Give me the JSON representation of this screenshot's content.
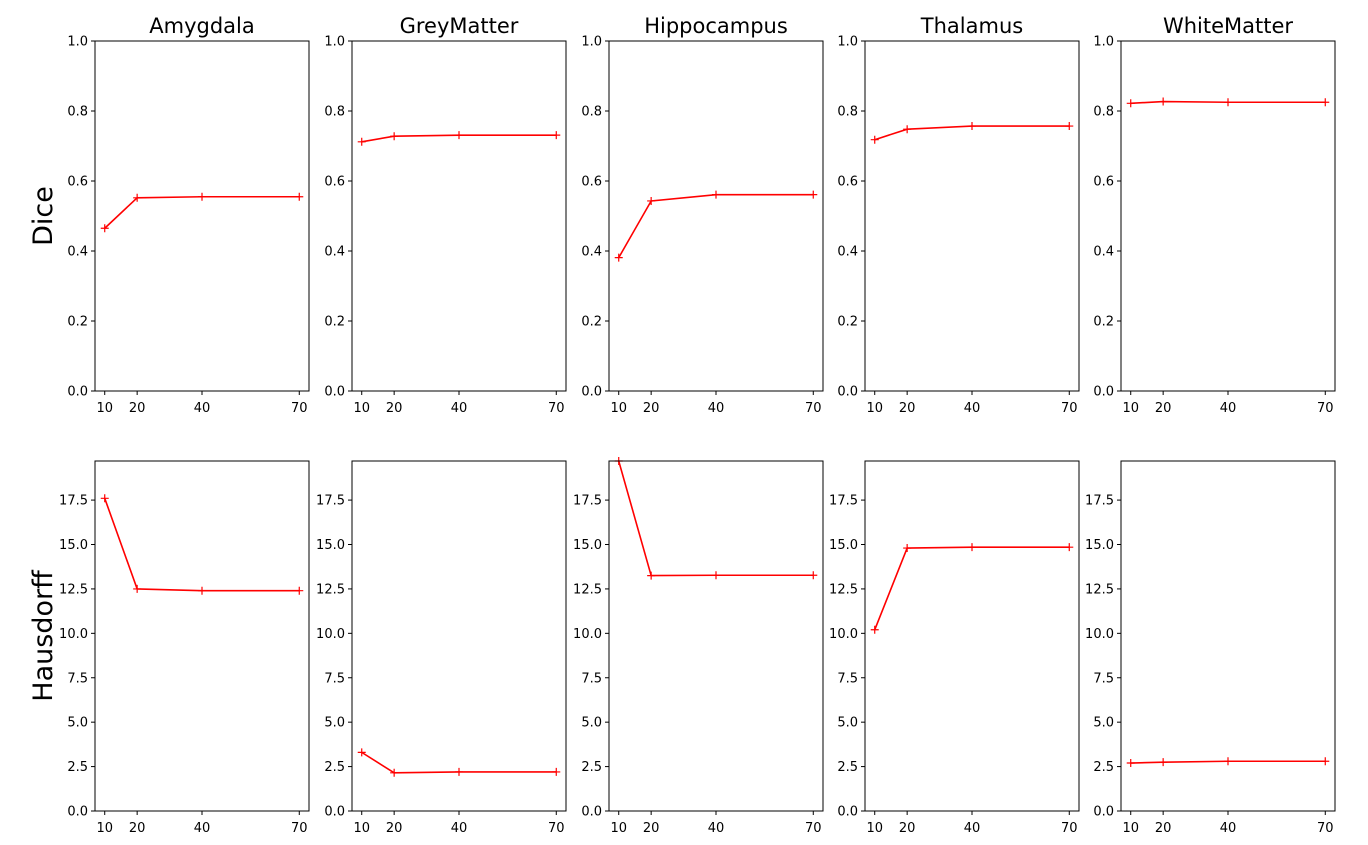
{
  "chart_data": [
    {
      "type": "line",
      "title": "Amygdala",
      "ylabel": "Dice",
      "x": [
        10,
        20,
        40,
        70
      ],
      "series": [
        {
          "values": [
            0.465,
            0.552,
            0.555,
            0.555
          ]
        }
      ],
      "xticks": [
        "10",
        "20",
        "40",
        "70"
      ],
      "yticks": [
        "0.0",
        "0.2",
        "0.4",
        "0.6",
        "0.8",
        "1.0"
      ],
      "ylim": [
        0,
        1
      ],
      "xlim": [
        7,
        73
      ],
      "color": "#ff0000",
      "marker": "plus",
      "grid": false
    },
    {
      "type": "line",
      "title": "GreyMatter",
      "ylabel": "",
      "x": [
        10,
        20,
        40,
        70
      ],
      "series": [
        {
          "values": [
            0.712,
            0.728,
            0.731,
            0.731
          ]
        }
      ],
      "xticks": [
        "10",
        "20",
        "40",
        "70"
      ],
      "yticks": [
        "0.0",
        "0.2",
        "0.4",
        "0.6",
        "0.8",
        "1.0"
      ],
      "ylim": [
        0,
        1
      ],
      "xlim": [
        7,
        73
      ],
      "color": "#ff0000",
      "marker": "plus",
      "grid": false
    },
    {
      "type": "line",
      "title": "Hippocampus",
      "ylabel": "",
      "x": [
        10,
        20,
        40,
        70
      ],
      "series": [
        {
          "values": [
            0.381,
            0.543,
            0.561,
            0.561
          ]
        }
      ],
      "xticks": [
        "10",
        "20",
        "40",
        "70"
      ],
      "yticks": [
        "0.0",
        "0.2",
        "0.4",
        "0.6",
        "0.8",
        "1.0"
      ],
      "ylim": [
        0,
        1
      ],
      "xlim": [
        7,
        73
      ],
      "color": "#ff0000",
      "marker": "plus",
      "grid": false
    },
    {
      "type": "line",
      "title": "Thalamus",
      "ylabel": "",
      "x": [
        10,
        20,
        40,
        70
      ],
      "series": [
        {
          "values": [
            0.718,
            0.748,
            0.757,
            0.757
          ]
        }
      ],
      "xticks": [
        "10",
        "20",
        "40",
        "70"
      ],
      "yticks": [
        "0.0",
        "0.2",
        "0.4",
        "0.6",
        "0.8",
        "1.0"
      ],
      "ylim": [
        0,
        1
      ],
      "xlim": [
        7,
        73
      ],
      "color": "#ff0000",
      "marker": "plus",
      "grid": false
    },
    {
      "type": "line",
      "title": "WhiteMatter",
      "ylabel": "",
      "x": [
        10,
        20,
        40,
        70
      ],
      "series": [
        {
          "values": [
            0.822,
            0.827,
            0.825,
            0.825
          ]
        }
      ],
      "xticks": [
        "10",
        "20",
        "40",
        "70"
      ],
      "yticks": [
        "0.0",
        "0.2",
        "0.4",
        "0.6",
        "0.8",
        "1.0"
      ],
      "ylim": [
        0,
        1
      ],
      "xlim": [
        7,
        73
      ],
      "color": "#ff0000",
      "marker": "plus",
      "grid": false
    },
    {
      "type": "line",
      "title": "",
      "ylabel": "Hausdorff",
      "x": [
        10,
        20,
        40,
        70
      ],
      "series": [
        {
          "values": [
            17.6,
            12.5,
            12.4,
            12.4
          ]
        }
      ],
      "xticks": [
        "10",
        "20",
        "40",
        "70"
      ],
      "yticks": [
        "0.0",
        "2.5",
        "5.0",
        "7.5",
        "10.0",
        "12.5",
        "15.0",
        "17.5"
      ],
      "ylim": [
        0,
        19.7
      ],
      "xlim": [
        7,
        73
      ],
      "color": "#ff0000",
      "marker": "plus",
      "grid": false
    },
    {
      "type": "line",
      "title": "",
      "ylabel": "",
      "x": [
        10,
        20,
        40,
        70
      ],
      "series": [
        {
          "values": [
            3.3,
            2.15,
            2.2,
            2.2
          ]
        }
      ],
      "xticks": [
        "10",
        "20",
        "40",
        "70"
      ],
      "yticks": [
        "0.0",
        "2.5",
        "5.0",
        "7.5",
        "10.0",
        "12.5",
        "15.0",
        "17.5"
      ],
      "ylim": [
        0,
        19.7
      ],
      "xlim": [
        7,
        73
      ],
      "color": "#ff0000",
      "marker": "plus",
      "grid": false
    },
    {
      "type": "line",
      "title": "",
      "ylabel": "",
      "x": [
        10,
        20,
        40,
        70
      ],
      "series": [
        {
          "values": [
            19.7,
            13.25,
            13.27,
            13.27
          ]
        }
      ],
      "xticks": [
        "10",
        "20",
        "40",
        "70"
      ],
      "yticks": [
        "0.0",
        "2.5",
        "5.0",
        "7.5",
        "10.0",
        "12.5",
        "15.0",
        "17.5"
      ],
      "ylim": [
        0,
        19.7
      ],
      "xlim": [
        7,
        73
      ],
      "color": "#ff0000",
      "marker": "plus",
      "grid": false
    },
    {
      "type": "line",
      "title": "",
      "ylabel": "",
      "x": [
        10,
        20,
        40,
        70
      ],
      "series": [
        {
          "values": [
            10.2,
            14.8,
            14.85,
            14.85
          ]
        }
      ],
      "xticks": [
        "10",
        "20",
        "40",
        "70"
      ],
      "yticks": [
        "0.0",
        "2.5",
        "5.0",
        "7.5",
        "10.0",
        "12.5",
        "15.0",
        "17.5"
      ],
      "ylim": [
        0,
        19.7
      ],
      "xlim": [
        7,
        73
      ],
      "color": "#ff0000",
      "marker": "plus",
      "grid": false
    },
    {
      "type": "line",
      "title": "",
      "ylabel": "",
      "x": [
        10,
        20,
        40,
        70
      ],
      "series": [
        {
          "values": [
            2.7,
            2.75,
            2.8,
            2.8
          ]
        }
      ],
      "xticks": [
        "10",
        "20",
        "40",
        "70"
      ],
      "yticks": [
        "0.0",
        "2.5",
        "5.0",
        "7.5",
        "10.0",
        "12.5",
        "15.0",
        "17.5"
      ],
      "ylim": [
        0,
        19.7
      ],
      "xlim": [
        7,
        73
      ],
      "color": "#ff0000",
      "marker": "plus",
      "grid": false
    }
  ]
}
